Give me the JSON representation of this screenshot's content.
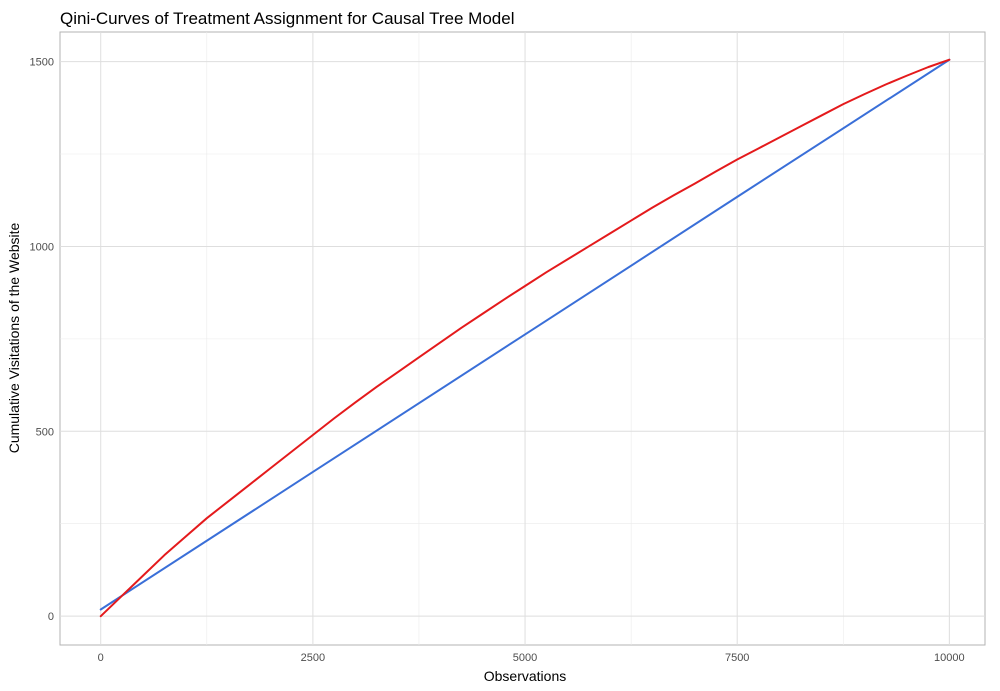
{
  "chart_data": {
    "type": "line",
    "title": "Qini-Curves of Treatment Assignment for Causal Tree Model",
    "xlabel": "Observations",
    "ylabel": "Cumulative Visitations of the Website",
    "xlim": [
      -480,
      10420
    ],
    "ylim": [
      -78,
      1580
    ],
    "x_ticks": [
      0,
      2500,
      5000,
      7500,
      10000
    ],
    "x_tick_labels": [
      "0",
      "2500",
      "5000",
      "7500",
      "10000"
    ],
    "y_ticks": [
      0,
      500,
      1000,
      1500
    ],
    "y_tick_labels": [
      "0",
      "500",
      "1000",
      "1500"
    ],
    "grid": true,
    "legend": "none",
    "series": [
      {
        "color": "#e41a1c",
        "x": [
          0,
          250,
          500,
          750,
          1000,
          1250,
          1500,
          1750,
          2000,
          2250,
          2500,
          2750,
          3000,
          3250,
          3500,
          3750,
          4000,
          4250,
          4500,
          4750,
          5000,
          5250,
          5500,
          5750,
          6000,
          6250,
          6500,
          6750,
          7000,
          7250,
          7500,
          7750,
          8000,
          8250,
          8500,
          8750,
          9000,
          9250,
          9500,
          9750,
          10000
        ],
        "y": [
          0,
          55,
          110,
          165,
          215,
          265,
          310,
          355,
          400,
          445,
          490,
          535,
          578,
          620,
          660,
          700,
          740,
          780,
          818,
          856,
          893,
          930,
          965,
          1000,
          1035,
          1070,
          1105,
          1138,
          1170,
          1203,
          1235,
          1265,
          1295,
          1325,
          1355,
          1385,
          1412,
          1438,
          1462,
          1485,
          1505
        ]
      },
      {
        "color": "#3a6fd8",
        "x": [
          0,
          2500,
          5000,
          7500,
          10000
        ],
        "y": [
          18,
          390,
          762,
          1134,
          1505
        ]
      }
    ]
  }
}
